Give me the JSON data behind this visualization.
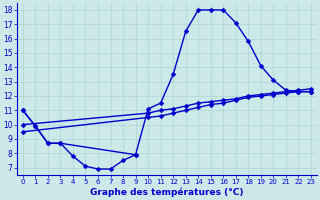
{
  "title": "Graphe des températures (°C)",
  "background_color": "#cce8e8",
  "line_color": "#0000cc",
  "grid_color": "#aad4d4",
  "marker": "D",
  "markersize": 2.5,
  "linewidth": 1.0,
  "xlim": [
    -0.5,
    23.5
  ],
  "ylim": [
    6.5,
    18.5
  ],
  "yticks": [
    7,
    8,
    9,
    10,
    11,
    12,
    13,
    14,
    15,
    16,
    17,
    18
  ],
  "xticks": [
    0,
    1,
    2,
    3,
    4,
    5,
    6,
    7,
    8,
    9,
    10,
    11,
    12,
    13,
    14,
    15,
    16,
    17,
    18,
    19,
    20,
    21,
    22,
    23
  ],
  "curve_top_x": [
    0,
    1,
    2,
    3,
    9,
    10,
    11,
    12,
    13,
    14,
    15,
    16,
    17,
    18,
    19,
    20,
    21,
    22,
    23
  ],
  "curve_top_y": [
    11.0,
    9.9,
    8.7,
    8.7,
    7.9,
    11.1,
    11.5,
    13.5,
    16.5,
    18.0,
    18.0,
    18.0,
    17.1,
    15.8,
    14.1,
    13.1,
    12.4,
    12.3,
    12.3
  ],
  "curve_bottom_x": [
    0,
    1,
    2,
    3,
    4,
    5,
    6,
    7,
    8,
    9
  ],
  "curve_bottom_y": [
    11.0,
    9.9,
    8.7,
    8.7,
    7.8,
    7.1,
    6.9,
    6.9,
    7.5,
    7.9
  ],
  "curve_diag1_x": [
    0,
    10,
    11,
    12,
    13,
    14,
    15,
    16,
    17,
    18,
    19,
    20,
    21,
    22,
    23
  ],
  "curve_diag1_y": [
    9.5,
    10.5,
    10.6,
    10.8,
    11.0,
    11.2,
    11.4,
    11.5,
    11.7,
    11.9,
    12.0,
    12.1,
    12.2,
    12.3,
    12.3
  ],
  "curve_diag2_x": [
    0,
    10,
    11,
    12,
    13,
    14,
    15,
    16,
    17,
    18,
    19,
    20,
    21,
    22,
    23
  ],
  "curve_diag2_y": [
    10.0,
    10.8,
    11.0,
    11.1,
    11.3,
    11.5,
    11.6,
    11.7,
    11.8,
    12.0,
    12.1,
    12.2,
    12.3,
    12.4,
    12.5
  ]
}
